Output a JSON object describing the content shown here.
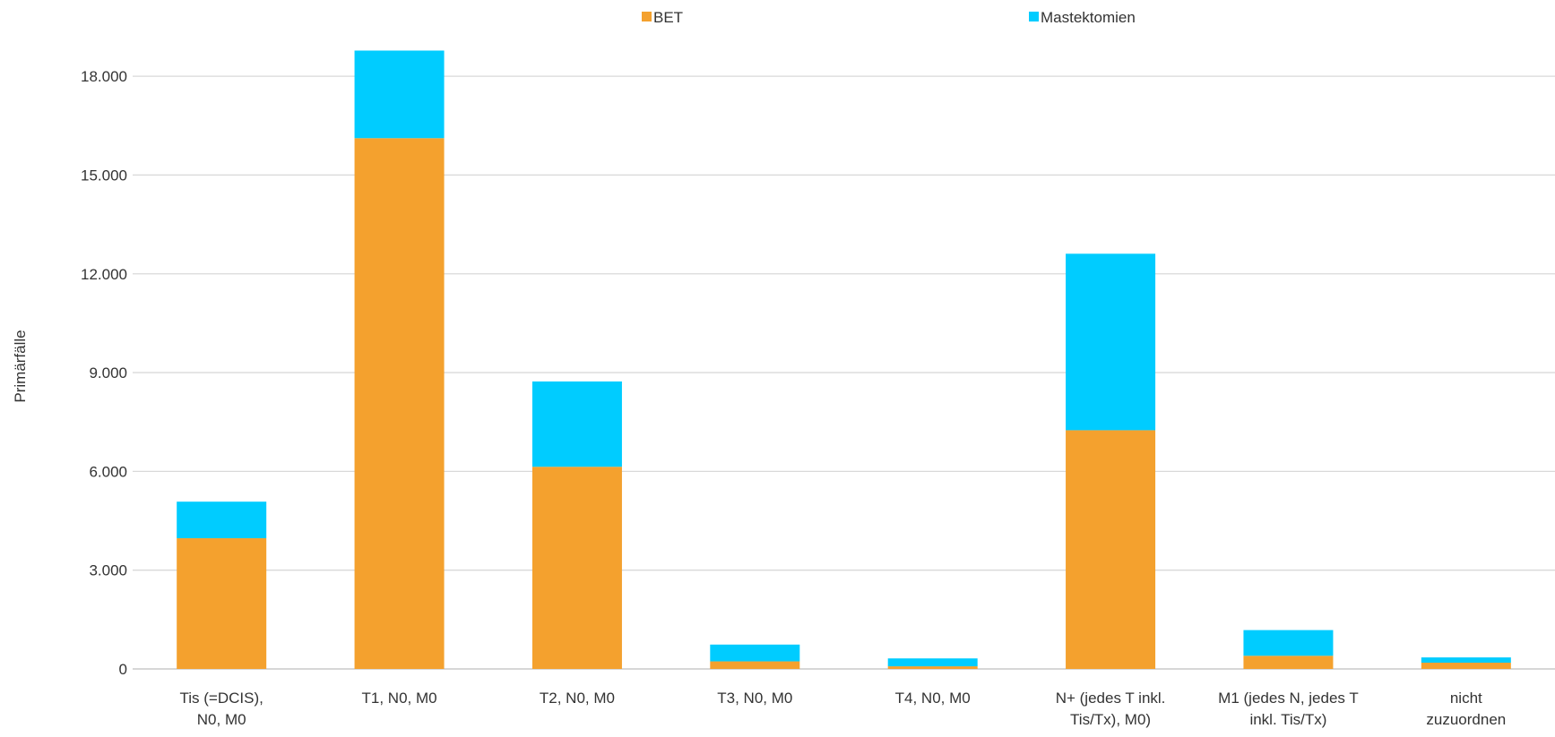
{
  "chart_data": {
    "type": "bar",
    "stacked": true,
    "title": "",
    "xlabel": "",
    "ylabel": "Primärfälle",
    "ylim": [
      0,
      19500
    ],
    "yticks": [
      0,
      3000,
      6000,
      9000,
      12000,
      15000,
      18000
    ],
    "ytick_labels": [
      "0",
      "3.000",
      "6.000",
      "9.000",
      "12.000",
      "15.000",
      "18.000"
    ],
    "grid": true,
    "legend_position": "top",
    "categories": [
      [
        "Tis (=DCIS),",
        "N0, M0"
      ],
      [
        "T1, N0, M0"
      ],
      [
        "T2, N0, M0"
      ],
      [
        "T3, N0, M0"
      ],
      [
        "T4, N0, M0"
      ],
      [
        "N+ (jedes T inkl.",
        "Tis/Tx),  M0)"
      ],
      [
        "M1 (jedes N, jedes T",
        "inkl. Tis/Tx)"
      ],
      [
        "nicht",
        "zuzuordnen"
      ]
    ],
    "series": [
      {
        "name": "BET",
        "color": "#F4A12E",
        "values": [
          3970,
          16120,
          6140,
          230,
          80,
          7250,
          400,
          190
        ]
      },
      {
        "name": "Mastektomien",
        "color": "#00CCFF",
        "values": [
          1110,
          2660,
          2590,
          510,
          240,
          5360,
          780,
          160
        ]
      }
    ]
  }
}
